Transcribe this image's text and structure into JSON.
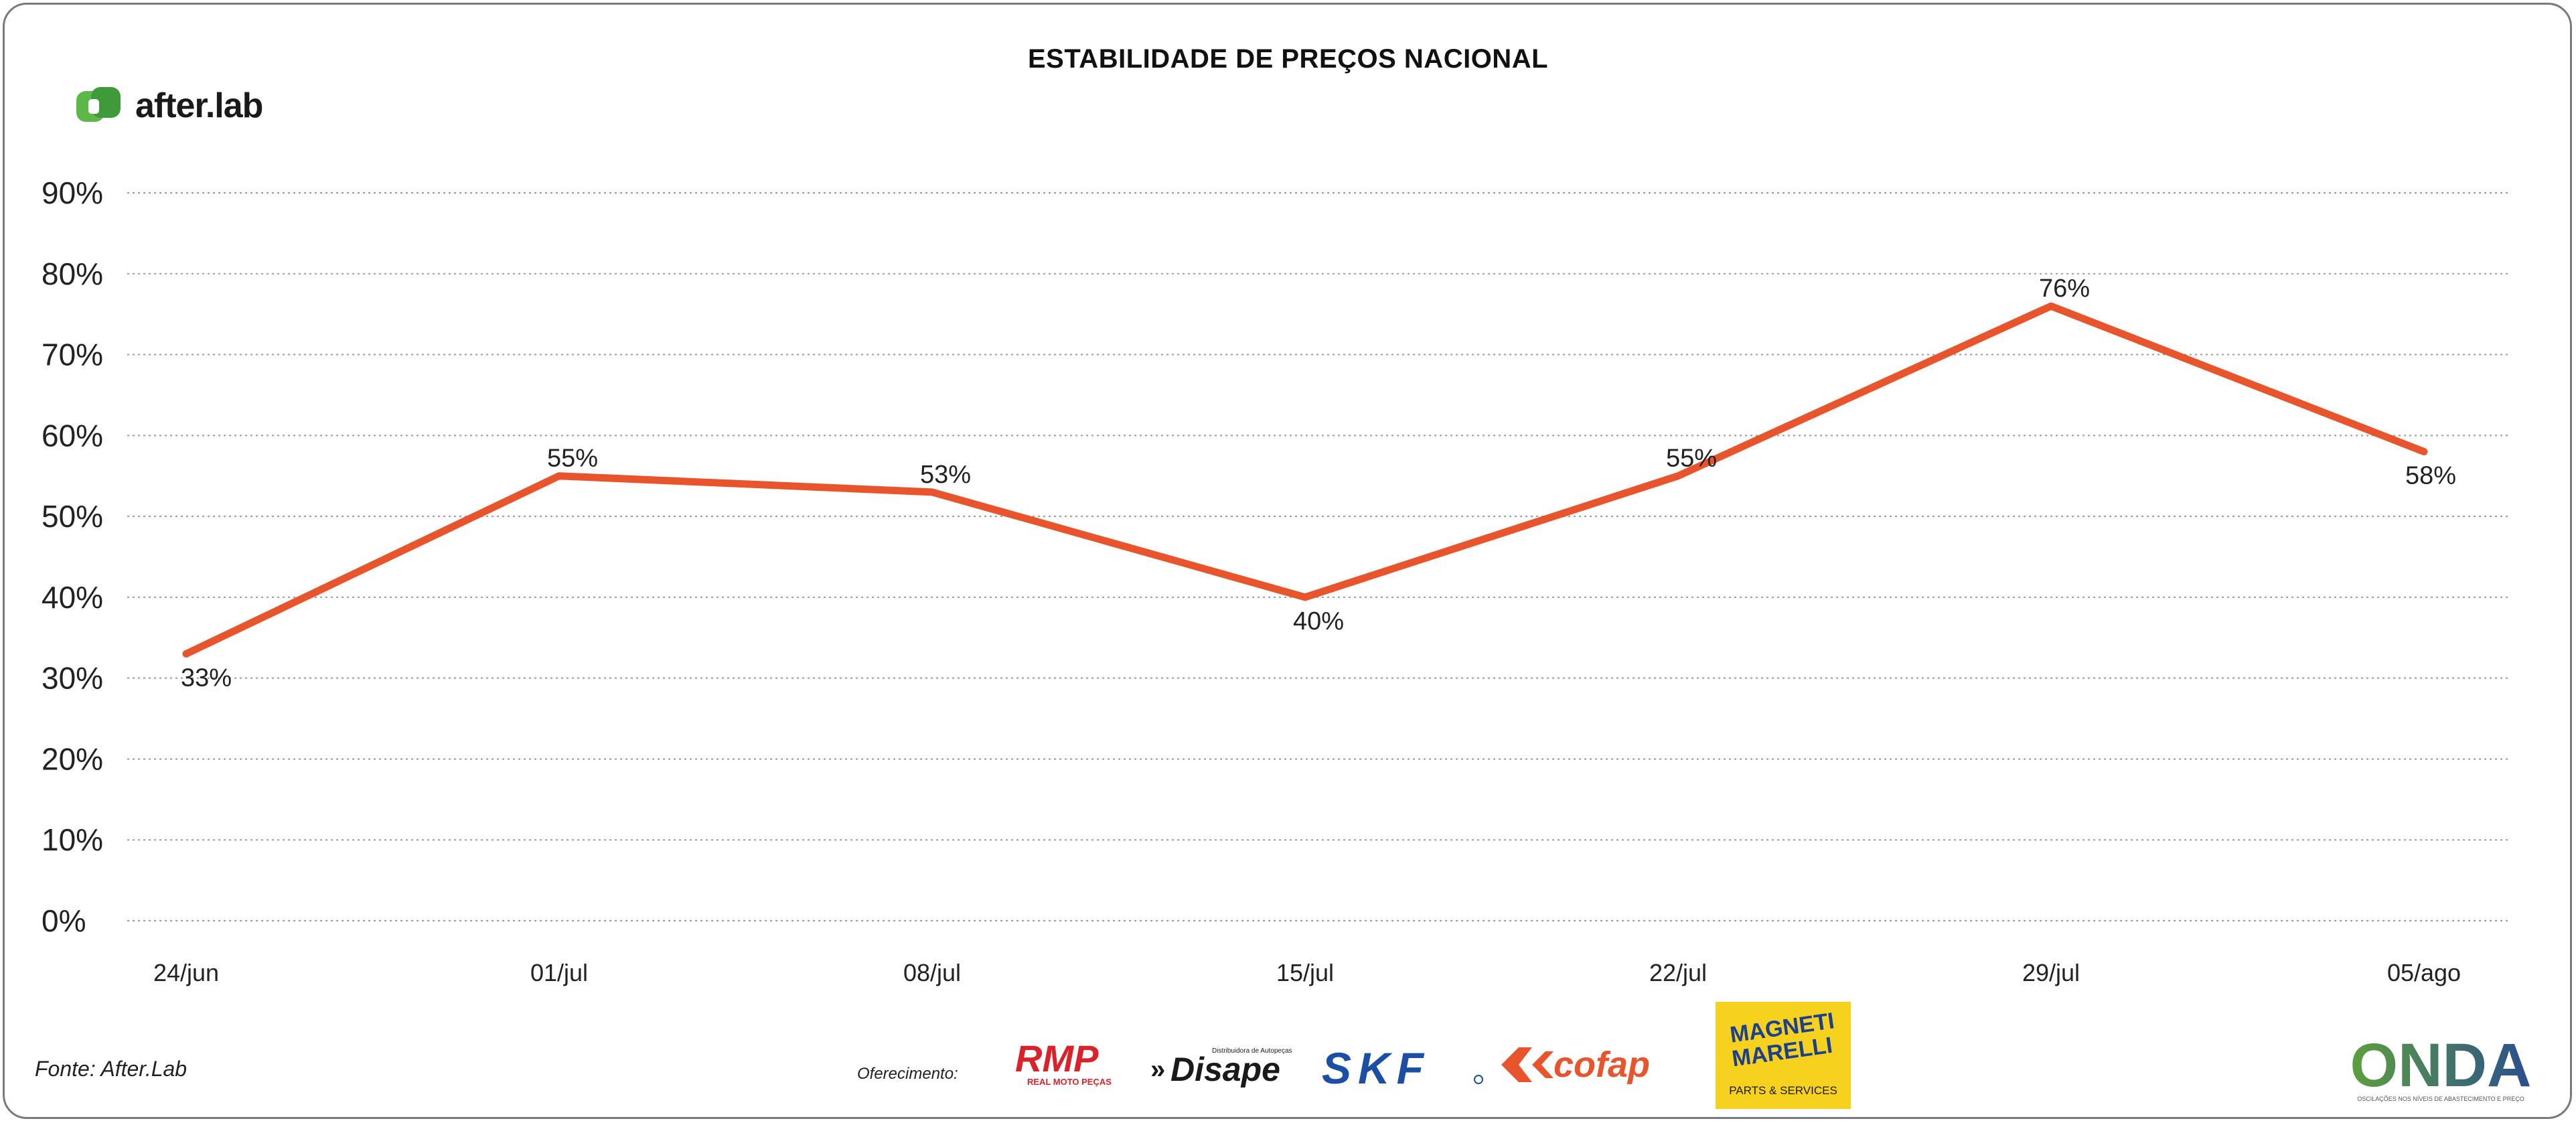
{
  "header": {
    "title": "ESTABILIDADE DE PREÇOS NACIONAL"
  },
  "brand": {
    "name": "after.lab",
    "icon": "after-lab-logo-icon"
  },
  "footer": {
    "source": "Fonte: After.Lab",
    "offer_label": "Oferecimento:",
    "sponsors": {
      "rmp": "RMP",
      "rmp_sub": "REAL MOTO PEÇAS",
      "disape": "Disape",
      "disape_sub": "Distribuidora de Autopeças",
      "skf": "SKF",
      "cofap": "cofap",
      "magneti_top": "MAGNETI",
      "magneti_bottom": "MARELLI",
      "magneti_sub": "PARTS & SERVICES"
    },
    "onda": {
      "name": "ONDA",
      "sub": "OSCILAÇÕES NOS NÍVEIS DE ABASTECIMENTO E PREÇO"
    }
  },
  "chart_data": {
    "type": "line",
    "title": "ESTABILIDADE DE PREÇOS NACIONAL",
    "categories": [
      "24/jun",
      "01/jul",
      "08/jul",
      "15/jul",
      "22/jul",
      "29/jul",
      "05/ago"
    ],
    "series": [
      {
        "values": [
          33,
          55,
          53,
          40,
          55,
          76,
          58
        ],
        "labels": [
          "33%",
          "55%",
          "53%",
          "40%",
          "55%",
          "76%",
          "58%"
        ],
        "color": "#e8542c"
      }
    ],
    "yticks": [
      "0%",
      "10%",
      "20%",
      "30%",
      "40%",
      "50%",
      "60%",
      "70%",
      "80%",
      "90%"
    ],
    "ylim": [
      0,
      90
    ],
    "grid": true,
    "legend": "none",
    "colors": {
      "line": "#e8542c",
      "grid": "#9a9a9a",
      "brand_green": "#5cb849"
    }
  }
}
